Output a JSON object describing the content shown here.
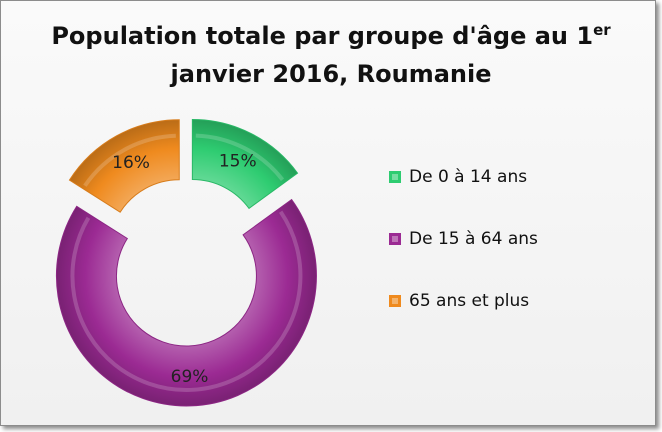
{
  "title": {
    "main": "Population totale par groupe d'âge au 1",
    "sup": "er",
    "line2": "janvier 2016, Roumanie"
  },
  "chart_data": {
    "type": "pie",
    "style": "exploded doughnut",
    "title": "Population totale par groupe d'âge au 1er janvier 2016, Roumanie",
    "categories": [
      "De 0 à 14 ans",
      "De 15 à 64 ans",
      "65 ans et plus"
    ],
    "values": [
      15,
      69,
      16
    ],
    "value_labels": [
      "15%",
      "69%",
      "16%"
    ],
    "colors": [
      "#2ecc71",
      "#9b2a93",
      "#ef8a1e"
    ],
    "legend_position": "right"
  },
  "legend": [
    {
      "label": "De 0 à 14 ans",
      "color": "#2ecc71"
    },
    {
      "label": "De 15 à 64 ans",
      "color": "#9b2a93"
    },
    {
      "label": "65 ans et plus",
      "color": "#ef8a1e"
    }
  ]
}
